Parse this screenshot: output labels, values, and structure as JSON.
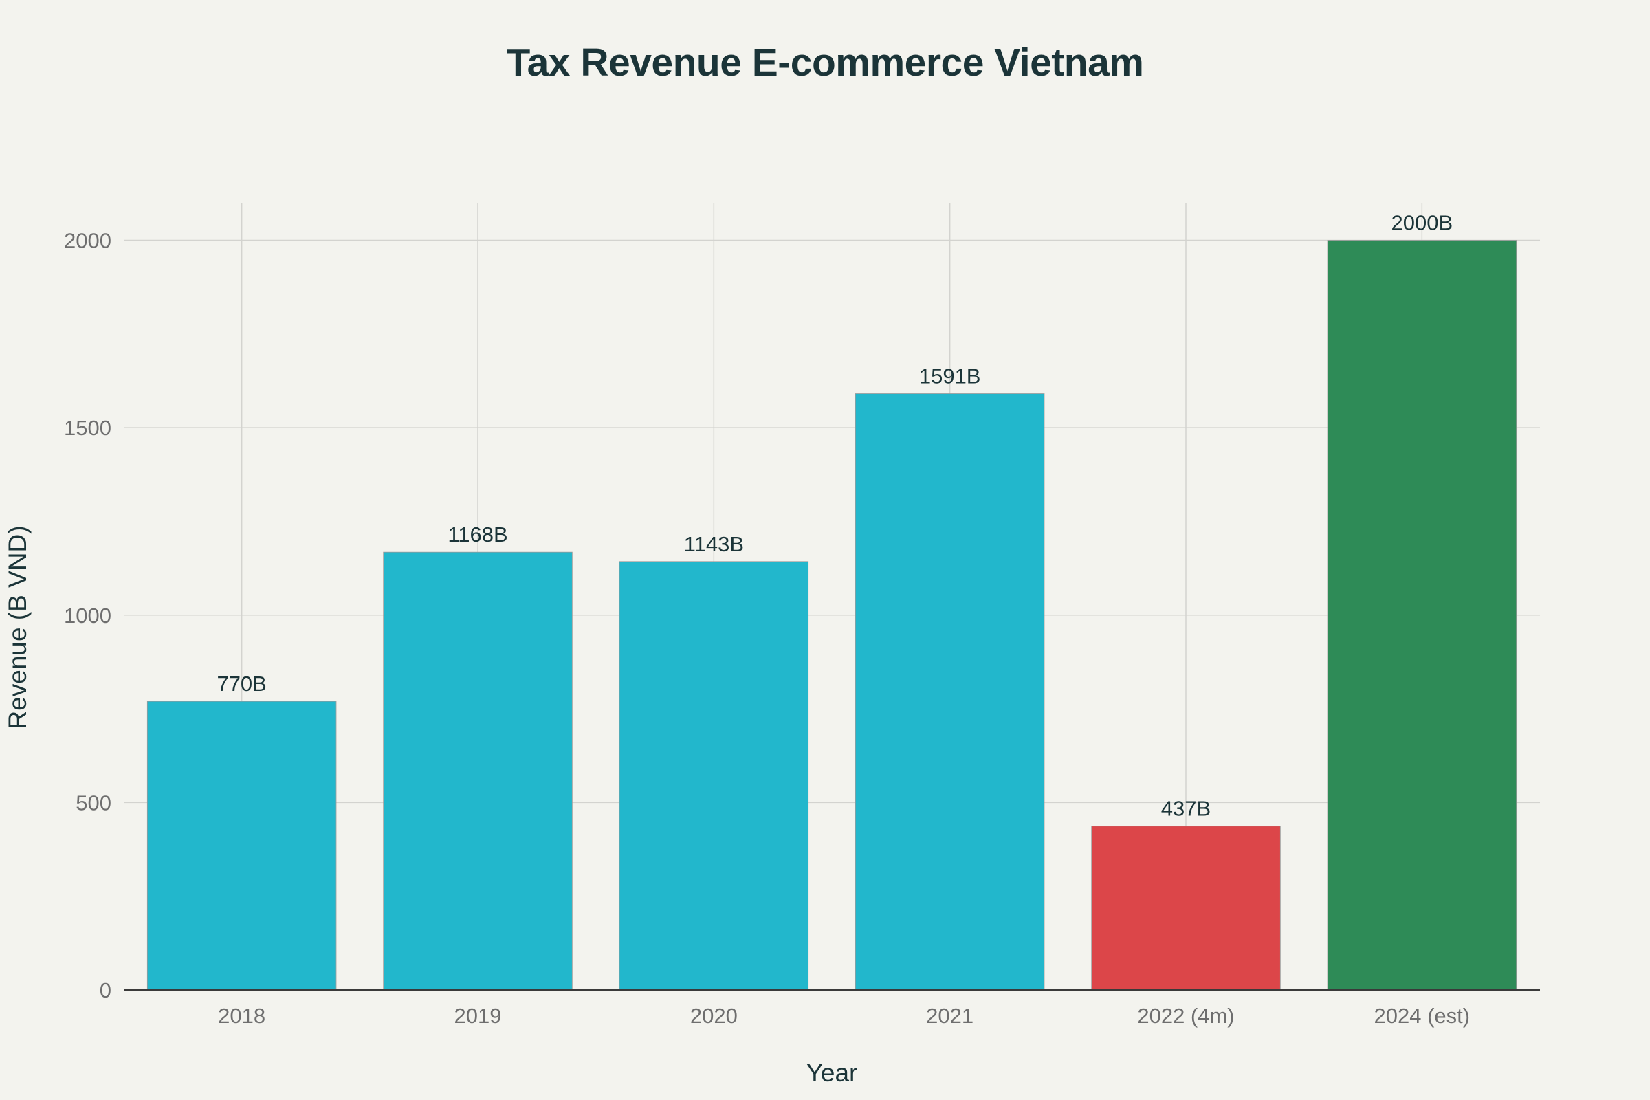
{
  "chart_data": {
    "type": "bar",
    "title": "Tax Revenue E-commerce Vietnam",
    "xlabel": "Year",
    "ylabel": "Revenue (B VND)",
    "categories": [
      "2018",
      "2019",
      "2020",
      "2021",
      "2022 (4m)",
      "2024 (est)"
    ],
    "values": [
      770,
      1168,
      1143,
      1591,
      437,
      2000
    ],
    "data_labels": [
      "770B",
      "1168B",
      "1143B",
      "1591B",
      "437B",
      "2000B"
    ],
    "colors": [
      "#22b7cc",
      "#22b7cc",
      "#22b7cc",
      "#22b7cc",
      "#dc4649",
      "#2e8b57"
    ],
    "ylim": [
      0,
      2100
    ],
    "yticks": [
      0,
      500,
      1000,
      1500,
      2000
    ],
    "grid": true,
    "legend": "none"
  }
}
